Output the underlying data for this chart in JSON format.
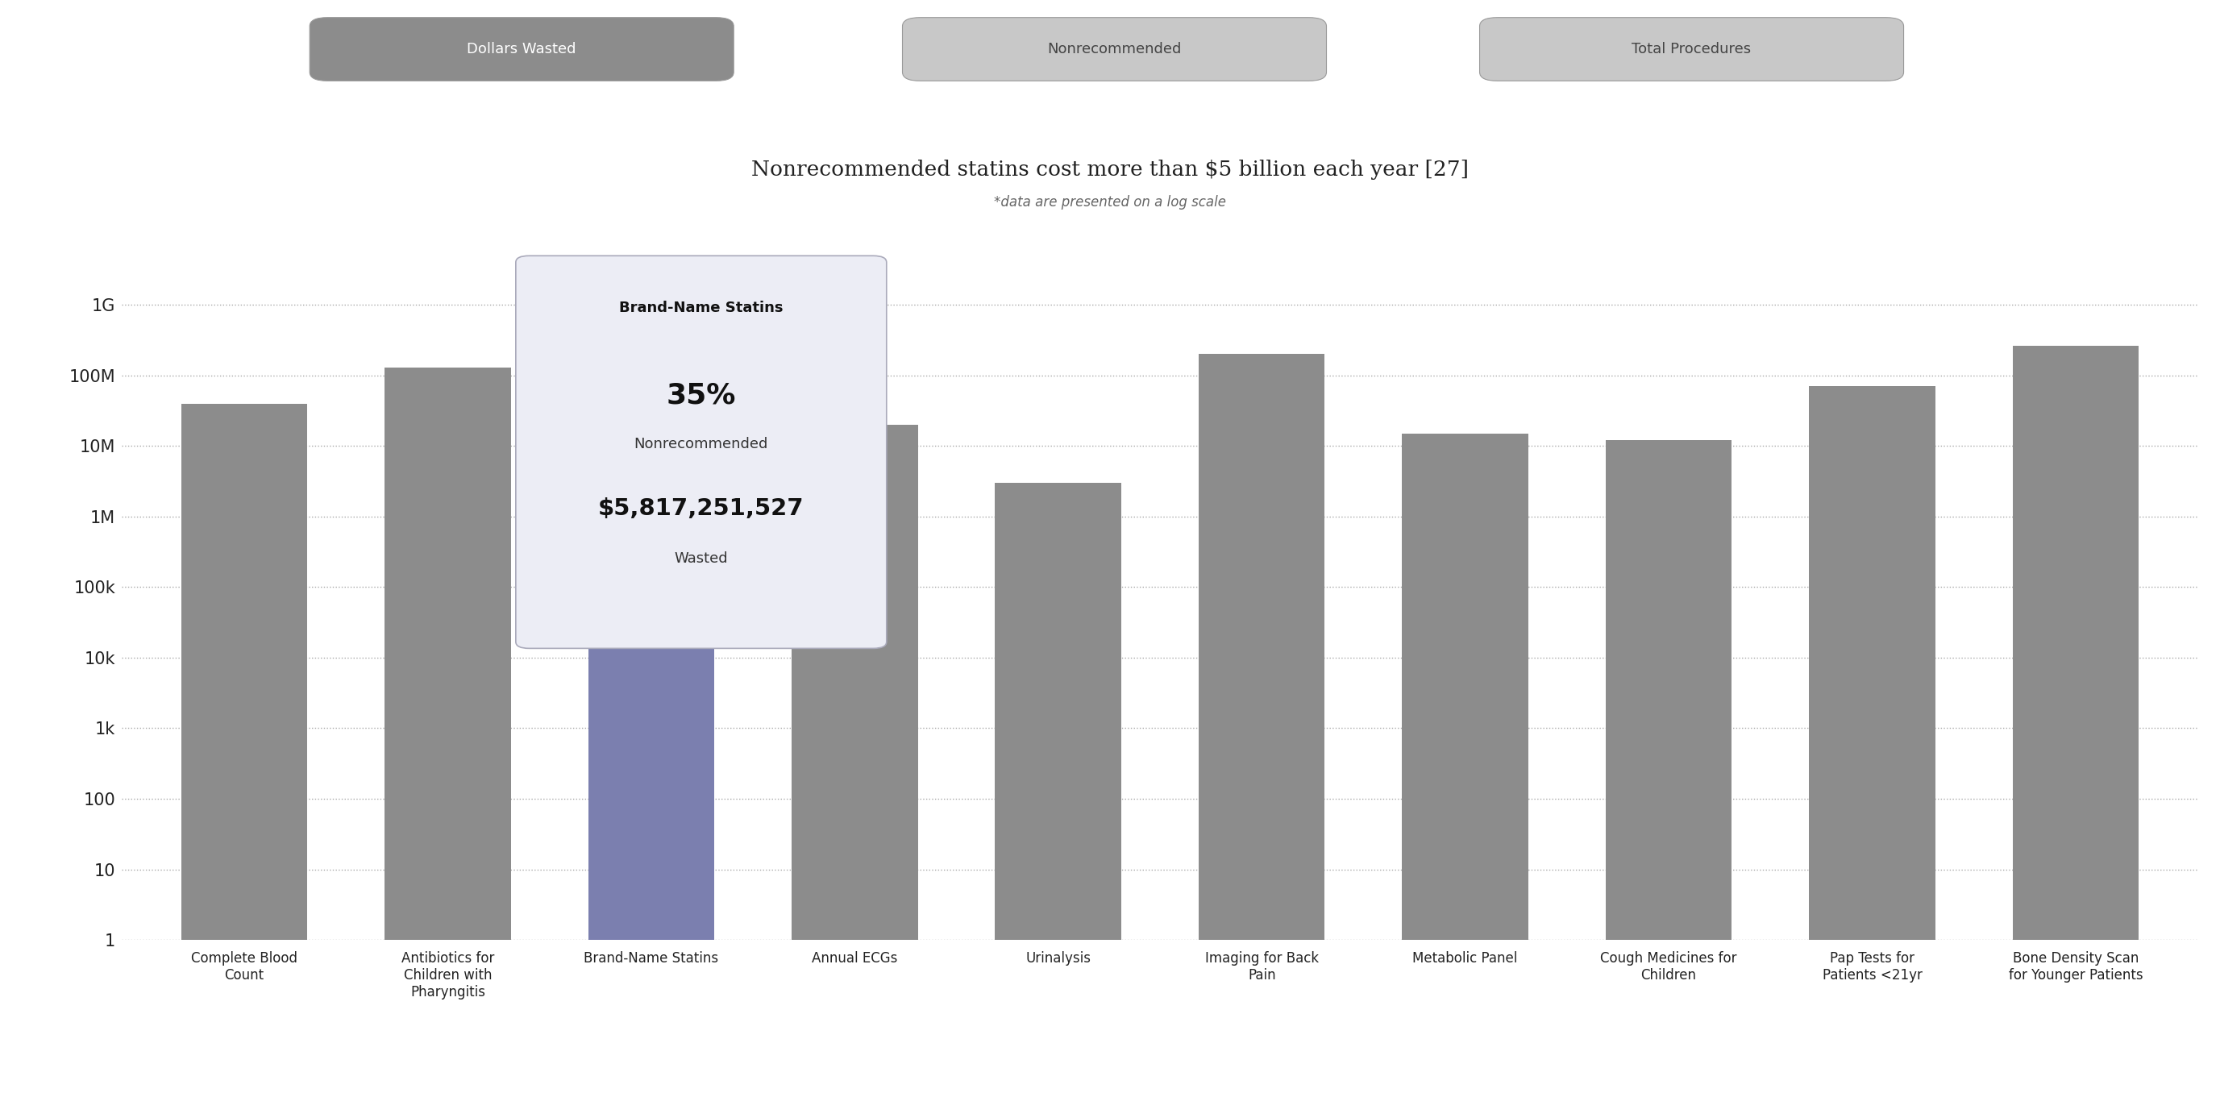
{
  "title": "Nonrecommended statins cost more than $5 billion each year",
  "title_ref": " [27]",
  "subtitle": "*data are presented on a log scale",
  "categories": [
    "Complete Blood\nCount",
    "Antibiotics for\nChildren with\nPharyngitis",
    "Brand-Name Statins",
    "Annual ECGs",
    "Urinalysis",
    "Imaging for Back\nPain",
    "Metabolic Panel",
    "Cough Medicines for\nChildren",
    "Pap Tests for\nPatients <21yr",
    "Bone Density Scan\nfor Younger Patients"
  ],
  "values": [
    40000000,
    130000000,
    5817251527,
    20000000,
    3000000,
    200000000,
    15000000,
    12000000,
    70000000,
    260000000
  ],
  "highlighted_index": 2,
  "bar_color_normal": "#8c8c8c",
  "bar_color_highlight": "#7b7faf",
  "bg_color": "#ffffff",
  "tooltip_bg": "#ecedf5",
  "tooltip_border": "#aaaabb",
  "tooltip_title": "Brand-Name Statins",
  "tooltip_pct": "35%",
  "tooltip_label1": "Nonrecommended",
  "tooltip_amount": "$5,817,251,527",
  "tooltip_label2": "Wasted",
  "tab_labels": [
    "Dollars Wasted",
    "Nonrecommended",
    "Total Procedures"
  ],
  "tab_active_index": 0,
  "tab_active_color": "#8c8c8c",
  "tab_inactive_color": "#c8c8c8",
  "tab_active_text": "#ffffff",
  "tab_inactive_text": "#444444",
  "ytick_labels": [
    "1",
    "10",
    "100",
    "1k",
    "10k",
    "100k",
    "1M",
    "10M",
    "100M",
    "1G"
  ],
  "ytick_values": [
    1,
    10,
    100,
    1000,
    10000,
    100000,
    1000000,
    10000000,
    100000000,
    1000000000
  ],
  "ymin": 1,
  "ymax": 4000000000,
  "grid_color": "#aaaaaa",
  "title_fontsize": 19,
  "subtitle_fontsize": 12,
  "xtick_fontsize": 12,
  "ytick_fontsize": 15
}
